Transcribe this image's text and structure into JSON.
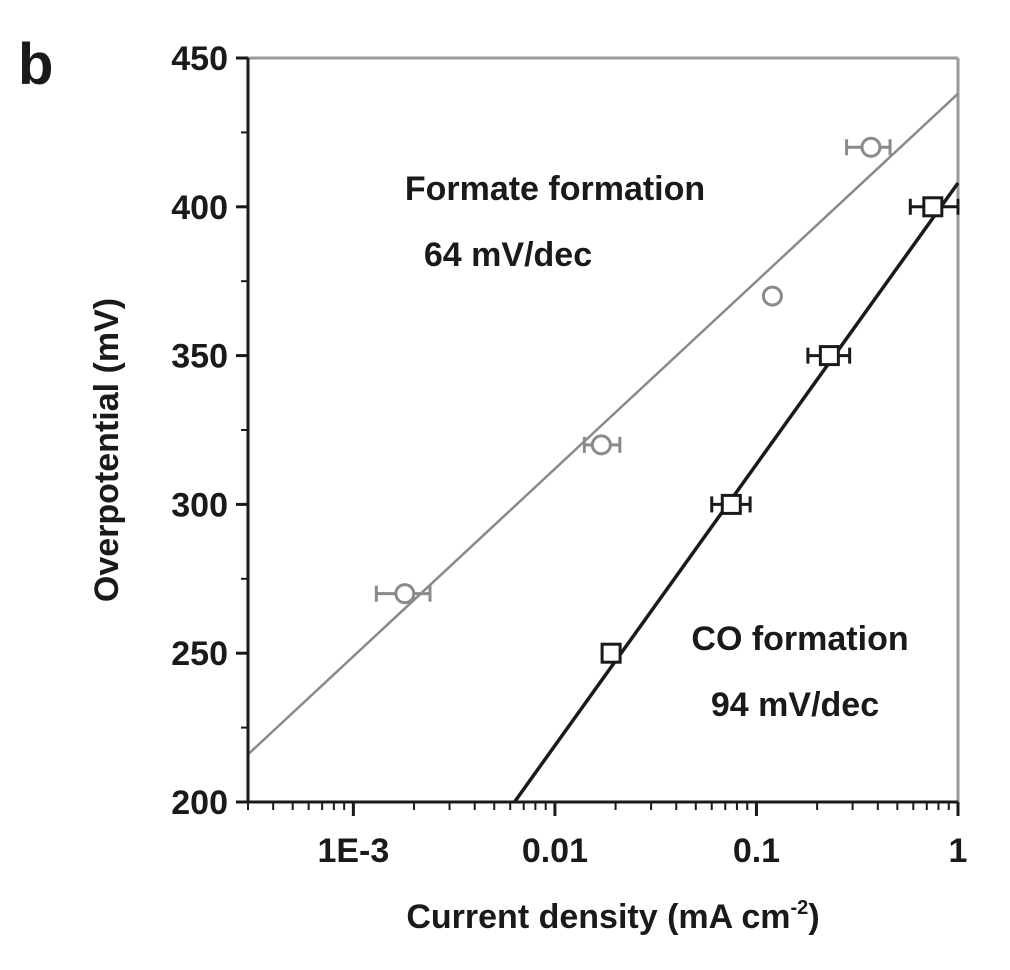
{
  "panel_label": "b",
  "chart_data": {
    "type": "scatter",
    "xlabel": "Current density (mA cm",
    "xlabel_sup": "-2",
    "xlabel_close": ")",
    "ylabel": "Overpotential (mV)",
    "xscale": "log",
    "xlim": [
      0.0003,
      1
    ],
    "ylim": [
      200,
      450
    ],
    "x_ticks": [
      {
        "value": 0.001,
        "label": "1E-3"
      },
      {
        "value": 0.01,
        "label": "0.01"
      },
      {
        "value": 0.1,
        "label": "0.1"
      },
      {
        "value": 1,
        "label": "1"
      }
    ],
    "y_ticks": [
      {
        "value": 200,
        "label": "200"
      },
      {
        "value": 250,
        "label": "250"
      },
      {
        "value": 300,
        "label": "300"
      },
      {
        "value": 350,
        "label": "350"
      },
      {
        "value": 400,
        "label": "400"
      },
      {
        "value": 450,
        "label": "450"
      }
    ],
    "grid": false,
    "series": [
      {
        "marker": "circle",
        "color": "#8a8a8a",
        "points": [
          {
            "x": 0.0018,
            "y": 270,
            "xerr": [
              0.0013,
              0.0024
            ]
          },
          {
            "x": 0.017,
            "y": 320,
            "xerr": [
              0.014,
              0.021
            ]
          },
          {
            "x": 0.12,
            "y": 370
          },
          {
            "x": 0.37,
            "y": 420,
            "xerr": [
              0.28,
              0.46
            ]
          }
        ],
        "fit": {
          "x": [
            0.0003,
            1
          ],
          "y": [
            216,
            438
          ]
        },
        "annotation": [
          "Formate formation",
          "64 mV/dec"
        ]
      },
      {
        "marker": "square",
        "color": "#1a1a1a",
        "points": [
          {
            "x": 0.019,
            "y": 250
          },
          {
            "x": 0.075,
            "y": 300,
            "xerr": [
              0.06,
              0.093
            ]
          },
          {
            "x": 0.23,
            "y": 350,
            "xerr": [
              0.18,
              0.29
            ]
          },
          {
            "x": 0.75,
            "y": 400,
            "xerr": [
              0.58,
              1.0
            ]
          }
        ],
        "fit": {
          "x": [
            0.0063,
            1
          ],
          "y": [
            200,
            408
          ]
        },
        "annotation": [
          "CO formation",
          "94 mV/dec"
        ]
      }
    ]
  }
}
